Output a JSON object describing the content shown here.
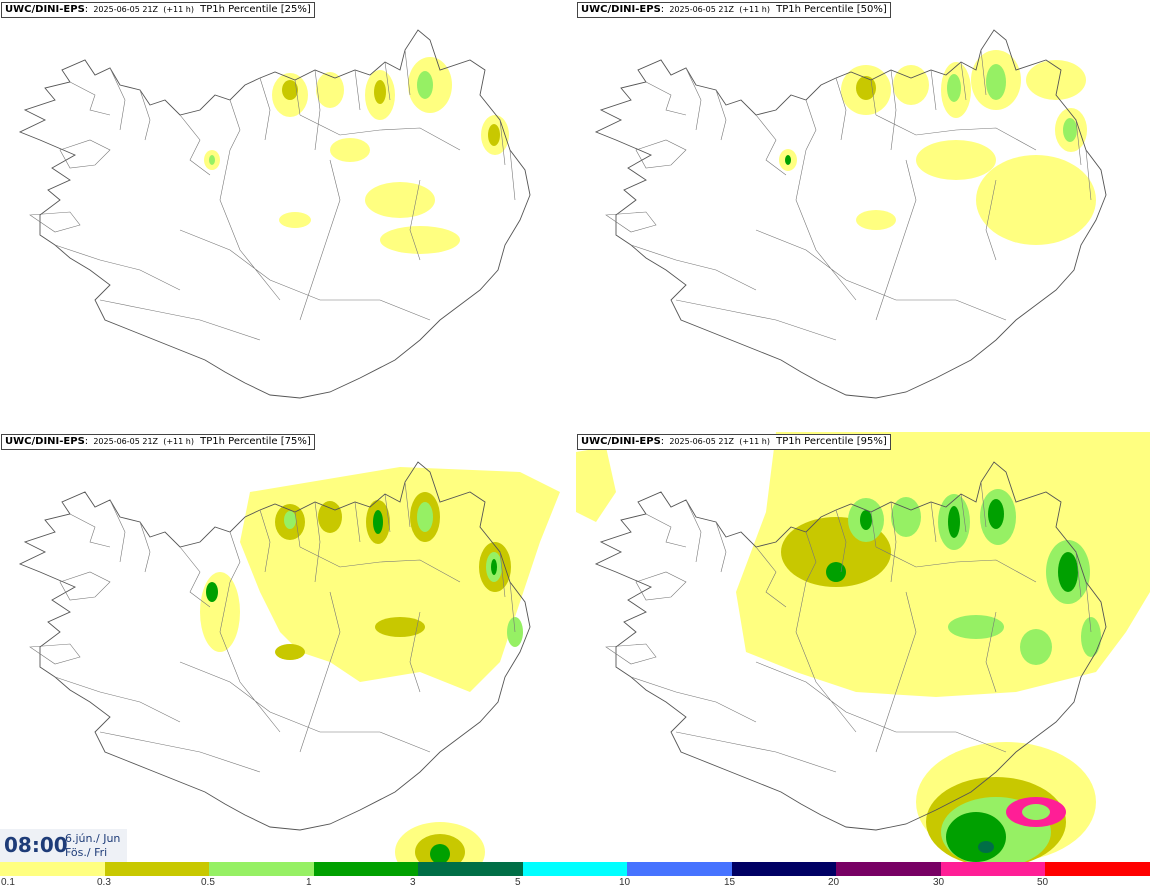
{
  "panels": [
    {
      "model": "UWC/DINI-EPS",
      "run": "2025-06-05 21Z",
      "lead": "(+11 h)",
      "field": "TP1h Percentile [25%]"
    },
    {
      "model": "UWC/DINI-EPS",
      "run": "2025-06-05 21Z",
      "lead": "(+11 h)",
      "field": "TP1h Percentile [50%]"
    },
    {
      "model": "UWC/DINI-EPS",
      "run": "2025-06-05 21Z",
      "lead": "(+11 h)",
      "field": "TP1h Percentile [75%]"
    },
    {
      "model": "UWC/DINI-EPS",
      "run": "2025-06-05 21Z",
      "lead": "(+11 h)",
      "field": "TP1h Percentile [95%]"
    }
  ],
  "valid_time": {
    "time": "08:00",
    "date_is": "6.jún./ Jun",
    "day_is": "Fös./ Fri"
  },
  "colorbar": {
    "colors": [
      "#ffff80",
      "#c8c800",
      "#96f064",
      "#00a000",
      "#006e46",
      "#00ffff",
      "#4673ff",
      "#000064",
      "#780064",
      "#ff1e96",
      "#ff0000"
    ],
    "labels": [
      "0.1",
      "0.3",
      "0.5",
      "1",
      "3",
      "5",
      "10",
      "15",
      "20",
      "30",
      "50"
    ]
  }
}
